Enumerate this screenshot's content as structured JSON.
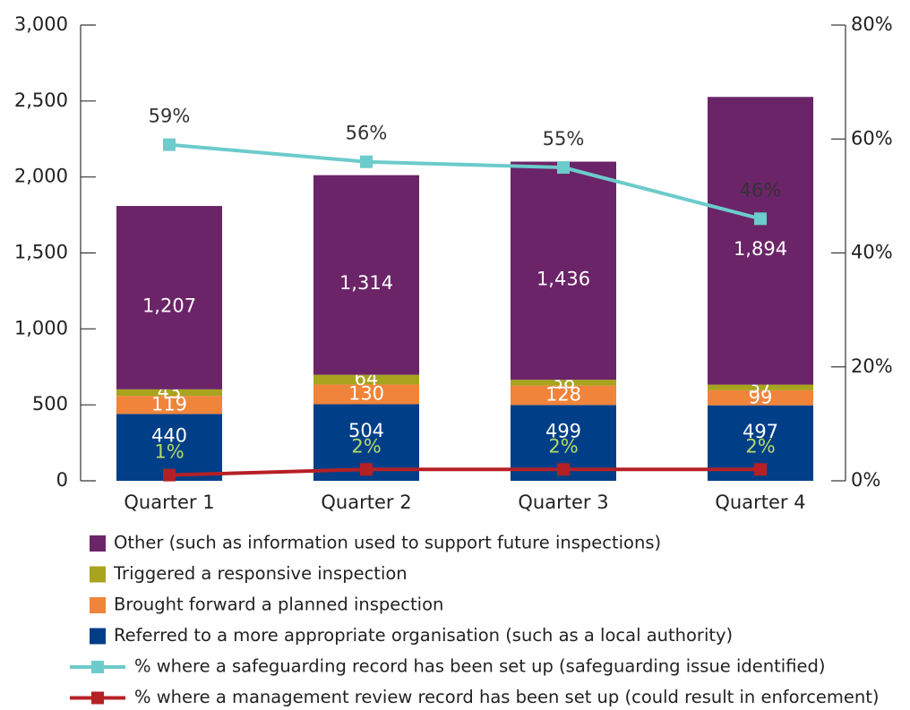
{
  "chart_data": {
    "type": "bar",
    "categories": [
      "Quarter 1",
      "Quarter 2",
      "Quarter 3",
      "Quarter 4"
    ],
    "series": [
      {
        "name": "Referred to a more appropriate organisation (such as a local authority)",
        "color": "#003f87",
        "values": [
          440,
          504,
          499,
          497
        ]
      },
      {
        "name": "Brought forward a planned inspection",
        "color": "#f0843a",
        "values": [
          119,
          130,
          128,
          99
        ]
      },
      {
        "name": "Triggered a responsive inspection",
        "color": "#a8a41e",
        "values": [
          43,
          64,
          38,
          37
        ]
      },
      {
        "name": "Other (such as information used to support future inspections)",
        "color": "#6b2468",
        "values": [
          1207,
          1314,
          1436,
          1894
        ],
        "value_labels": [
          "1,207",
          "1,314",
          "1,436",
          "1,894"
        ]
      },
      {
        "name": "% where a safeguarding record has been set up (safeguarding issue identified)",
        "color": "#6ccbcb",
        "type": "line",
        "axis": "y2",
        "values": [
          59,
          56,
          55,
          46
        ],
        "value_labels": [
          "59%",
          "56%",
          "55%",
          "46%"
        ]
      },
      {
        "name": "% where a management review record has been set up (could result in enforcement)",
        "color": "#b52025",
        "type": "line",
        "axis": "y2",
        "values": [
          1,
          2,
          2,
          2
        ],
        "value_labels": [
          "1%",
          "2%",
          "2%",
          "2%"
        ]
      }
    ],
    "stacked": true,
    "ylim": [
      0,
      3000
    ],
    "yticks": [
      0,
      500,
      {
        "value": 1000,
        "label": "1,000"
      },
      {
        "value": 1500,
        "label": "1,500"
      },
      {
        "value": 2000,
        "label": "2,000"
      },
      {
        "value": 2500,
        "label": "2,500"
      },
      {
        "value": 3000,
        "label": "3,000"
      }
    ],
    "y2lim": [
      0,
      80
    ],
    "y2ticks": [
      {
        "value": 0,
        "label": "0%"
      },
      {
        "value": 20,
        "label": "20%"
      },
      {
        "value": 40,
        "label": "40%"
      },
      {
        "value": 60,
        "label": "60%"
      },
      {
        "value": 80,
        "label": "80%"
      }
    ]
  }
}
